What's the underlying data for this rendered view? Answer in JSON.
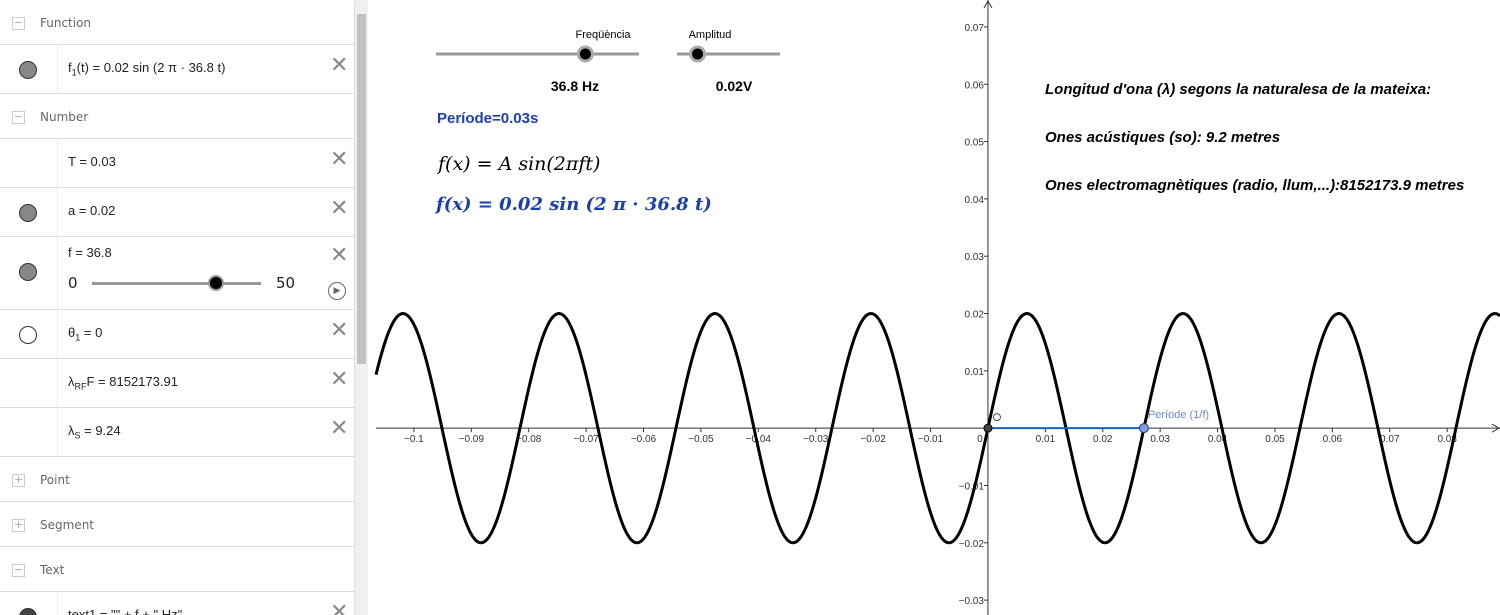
{
  "algebra": {
    "rows": [
      {
        "kind": "group",
        "label": "Function",
        "open": true
      },
      {
        "kind": "item",
        "icon": "filled",
        "name": "f",
        "sub": "1",
        "expr": "(t) = 0.02 sin (2 π · 36.8 t)"
      },
      {
        "kind": "group",
        "label": "Number",
        "open": true
      },
      {
        "kind": "item",
        "icon": "none",
        "name": "T",
        "expr": " = 0.03"
      },
      {
        "kind": "item",
        "icon": "filled",
        "name": "a",
        "expr": " = 0.02"
      },
      {
        "kind": "item",
        "icon": "filled",
        "name": "f",
        "expr": " = 36.8",
        "slider": {
          "min": 0,
          "max": 50,
          "value": 36.8
        }
      },
      {
        "kind": "item",
        "icon": "empty",
        "name": "θ",
        "sub": "1",
        "expr": " = 0"
      },
      {
        "kind": "item",
        "icon": "none",
        "name": "λ",
        "sub": "RF",
        "expr": "F = 8152173.91"
      },
      {
        "kind": "item",
        "icon": "none",
        "name": "λ",
        "sub": "S",
        "expr": " = 9.24"
      },
      {
        "kind": "group",
        "label": "Point",
        "open": false
      },
      {
        "kind": "group",
        "label": "Segment",
        "open": false
      },
      {
        "kind": "group",
        "label": "Text",
        "open": true
      },
      {
        "kind": "item",
        "icon": "dark",
        "name": "text1",
        "expr": " = \"\" + f + \" Hz\""
      }
    ]
  },
  "graphics": {
    "xlim": [
      -0.1066,
      0.0892
    ],
    "ylim": [
      -0.0326,
      0.0747
    ],
    "xticks": [
      {
        "value": -0.1,
        "label": "−0.1"
      },
      {
        "value": -0.09,
        "label": "−0.09"
      },
      {
        "value": -0.08,
        "label": "−0.08"
      },
      {
        "value": -0.07,
        "label": "−0.07"
      },
      {
        "value": -0.06,
        "label": "−0.06"
      },
      {
        "value": -0.05,
        "label": "−0.05"
      },
      {
        "value": -0.04,
        "label": "−0.04"
      },
      {
        "value": -0.03,
        "label": "−0.03"
      },
      {
        "value": -0.02,
        "label": "−0.02"
      },
      {
        "value": -0.01,
        "label": "−0.01"
      },
      0,
      0.01,
      0.02,
      0.03,
      0.04,
      0.05,
      0.06,
      0.07,
      0.08
    ],
    "yticks": [
      {
        "value": -0.03,
        "label": "−0.03"
      },
      {
        "value": -0.02,
        "label": "−0.02"
      },
      {
        "value": -0.01,
        "label": "−0.01"
      },
      0.01,
      0.02,
      0.03,
      0.04,
      0.05,
      0.06,
      0.07
    ],
    "sliders": [
      {
        "label": "Freqüència",
        "value": 36.8,
        "value_label": "36.8 Hz",
        "min": 0,
        "max": 50
      },
      {
        "label": "Amplitud",
        "value": 0.02,
        "value_label": "0.02V",
        "min": 0,
        "max": 0.1
      }
    ],
    "period_label": "Període (1/f)",
    "period_text": "Període=0.03s",
    "formula": "f(x) = A sin(2πft)",
    "formula_values": "f(x) = 0.02  sin (2 π · 36.8 t)",
    "notes": [
      "Longitud d'ona (λ) segons la naturalesa de la mateixa:",
      "Ones acústiques (so): 9.2 metres",
      "Ones electromagnètiques (radio, llum,...):8152173.9 metres"
    ]
  }
}
